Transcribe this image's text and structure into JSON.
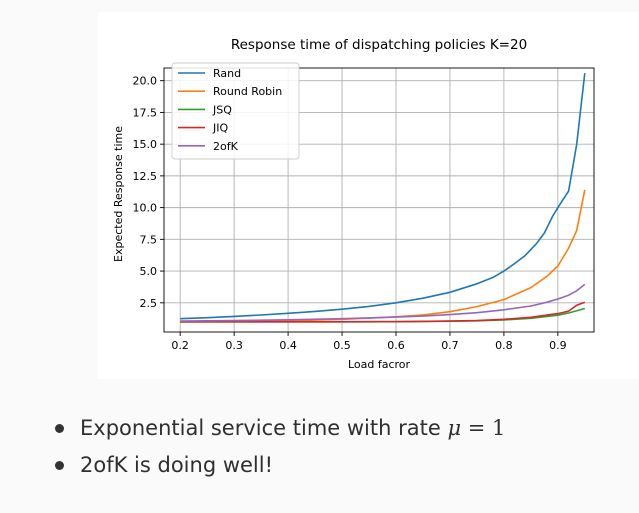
{
  "chart_data": {
    "type": "line",
    "title": "Response time of dispatching policies K=20",
    "xlabel": "Load facror",
    "ylabel": "Expected Response time",
    "xlim": [
      0.17,
      0.967
    ],
    "ylim": [
      0.2,
      21.0
    ],
    "xticks": [
      "0.2",
      "0.3",
      "0.4",
      "0.5",
      "0.6",
      "0.7",
      "0.8",
      "0.9"
    ],
    "yticks": [
      "2.5",
      "5.0",
      "7.5",
      "10.0",
      "12.5",
      "15.0",
      "17.5",
      "20.0"
    ],
    "grid": true,
    "legend_position": "top-left",
    "series": [
      {
        "name": "Rand",
        "color": "#1f77b4",
        "x": [
          0.2,
          0.25,
          0.3,
          0.35,
          0.4,
          0.45,
          0.5,
          0.55,
          0.6,
          0.65,
          0.7,
          0.75,
          0.78,
          0.8,
          0.82,
          0.84,
          0.86,
          0.875,
          0.89,
          0.9,
          0.92,
          0.935,
          0.95
        ],
        "y": [
          1.25,
          1.33,
          1.43,
          1.54,
          1.67,
          1.82,
          2.0,
          2.22,
          2.5,
          2.86,
          3.33,
          4.0,
          4.5,
          5.0,
          5.6,
          6.25,
          7.15,
          8.0,
          9.3,
          10.0,
          11.3,
          15.0,
          20.6
        ]
      },
      {
        "name": "Round Robin",
        "color": "#ff7f0e",
        "x": [
          0.2,
          0.3,
          0.4,
          0.5,
          0.6,
          0.65,
          0.7,
          0.75,
          0.8,
          0.85,
          0.88,
          0.9,
          0.92,
          0.935,
          0.95
        ],
        "y": [
          1.0,
          1.02,
          1.08,
          1.2,
          1.4,
          1.55,
          1.8,
          2.2,
          2.75,
          3.7,
          4.6,
          5.4,
          6.8,
          8.2,
          11.4
        ]
      },
      {
        "name": "JSQ",
        "color": "#2ca02c",
        "x": [
          0.2,
          0.3,
          0.4,
          0.5,
          0.6,
          0.7,
          0.75,
          0.8,
          0.85,
          0.9,
          0.92,
          0.95
        ],
        "y": [
          1.0,
          1.0,
          1.0,
          1.0,
          1.01,
          1.05,
          1.08,
          1.15,
          1.28,
          1.52,
          1.7,
          2.05
        ]
      },
      {
        "name": "JIQ",
        "color": "#d62728",
        "x": [
          0.2,
          0.3,
          0.4,
          0.5,
          0.6,
          0.7,
          0.75,
          0.8,
          0.85,
          0.9,
          0.92,
          0.935,
          0.95
        ],
        "y": [
          1.0,
          1.0,
          1.0,
          1.0,
          1.01,
          1.06,
          1.1,
          1.2,
          1.36,
          1.65,
          1.85,
          2.3,
          2.55
        ]
      },
      {
        "name": "2ofK",
        "color": "#9467bd",
        "x": [
          0.2,
          0.3,
          0.4,
          0.5,
          0.6,
          0.65,
          0.7,
          0.75,
          0.8,
          0.85,
          0.88,
          0.9,
          0.92,
          0.935,
          0.95
        ],
        "y": [
          1.06,
          1.1,
          1.16,
          1.25,
          1.37,
          1.45,
          1.57,
          1.72,
          1.95,
          2.25,
          2.55,
          2.8,
          3.1,
          3.45,
          3.95
        ]
      }
    ]
  },
  "bullets": [
    {
      "text_before": "Exponential service time with rate ",
      "math_var": "μ",
      "math_rest": " = 1"
    },
    {
      "text_before": "2ofK is doing well!",
      "math_var": "",
      "math_rest": ""
    }
  ]
}
